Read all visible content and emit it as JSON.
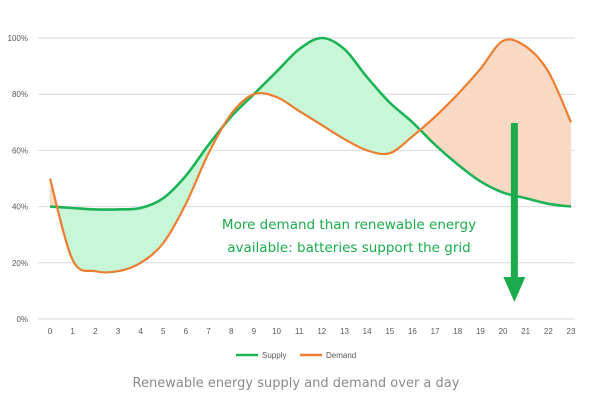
{
  "chart_data": {
    "type": "line",
    "x": [
      0,
      1,
      2,
      3,
      4,
      5,
      6,
      7,
      8,
      9,
      10,
      11,
      12,
      13,
      14,
      15,
      16,
      17,
      18,
      19,
      20,
      21,
      22,
      23
    ],
    "series": [
      {
        "name": "Supply",
        "color": "#1cb357",
        "values": [
          40,
          39.5,
          39,
          39,
          39.5,
          43,
          51,
          62,
          72,
          80,
          88,
          96,
          100,
          96,
          86,
          77,
          70,
          62,
          55,
          49,
          45,
          43,
          41,
          40
        ]
      },
      {
        "name": "Demand",
        "color": "#ed7d31",
        "values": [
          50,
          21,
          17,
          17,
          20,
          27,
          41,
          59,
          73,
          80,
          79,
          74,
          69,
          64,
          60,
          59,
          65,
          72,
          80,
          89,
          99,
          97,
          88,
          70
        ]
      }
    ],
    "ylim": [
      0,
      100
    ],
    "yticks": [
      "0%",
      "20%",
      "40%",
      "60%",
      "80%",
      "100%"
    ],
    "xticks": [
      "0",
      "1",
      "2",
      "3",
      "4",
      "5",
      "6",
      "7",
      "8",
      "9",
      "10",
      "11",
      "12",
      "13",
      "14",
      "15",
      "16",
      "17",
      "18",
      "19",
      "20",
      "21",
      "22",
      "23"
    ],
    "grid": true,
    "legend_position": "bottom",
    "fill_colors": {
      "surplus": "#c8f7d8",
      "deficit": "#f9d9c3"
    },
    "annotation": {
      "line1": "More demand than renewable energy",
      "line2": "available: batteries support the grid",
      "color": "#1cab4c",
      "arrow_color": "#1cab4c",
      "arrow_x": 20.5
    }
  },
  "caption": "Renewable energy supply and demand over a day"
}
